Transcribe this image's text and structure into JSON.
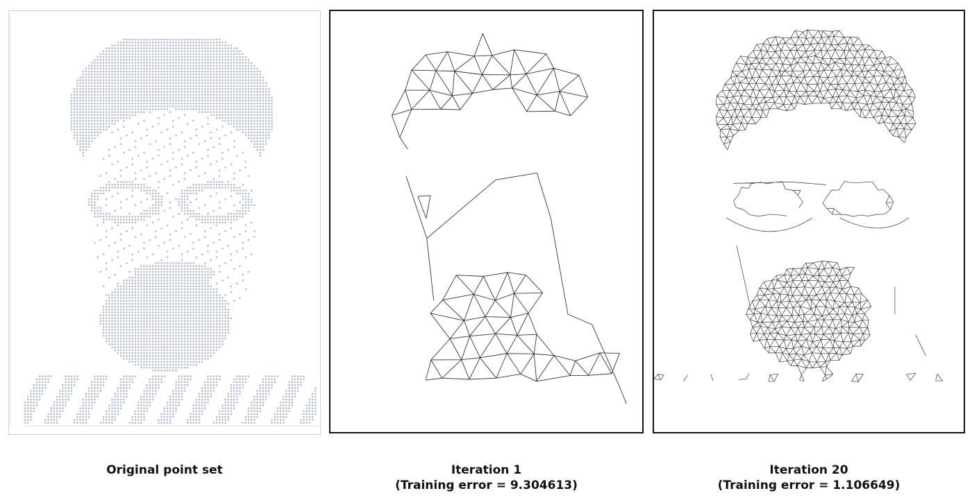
{
  "panels": [
    {
      "id": "original",
      "caption_line1": "Original point set",
      "caption_line2": ""
    },
    {
      "id": "iter1",
      "caption_line1": "Iteration 1",
      "caption_line2": "(Training error = 9.304613)"
    },
    {
      "id": "iter20",
      "caption_line1": "Iteration 20",
      "caption_line2": "(Training error = 1.106649)"
    }
  ],
  "colors": {
    "point_color": "#b4bccc",
    "mesh_color": "#333333",
    "frame_color": "#111111"
  }
}
